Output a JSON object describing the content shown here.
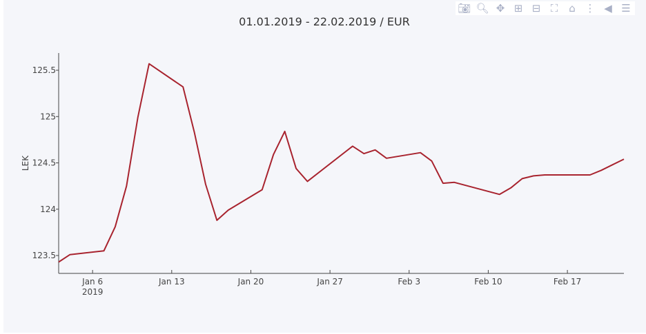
{
  "toolbar": [
    {
      "name": "camera-icon",
      "glyph": "📷︎"
    },
    {
      "name": "zoom-icon",
      "glyph": "🔍︎"
    },
    {
      "name": "pan-icon",
      "glyph": "✥"
    },
    {
      "name": "zoom-in-icon",
      "glyph": "⊞"
    },
    {
      "name": "zoom-out-icon",
      "glyph": "⊟"
    },
    {
      "name": "autoscale-icon",
      "glyph": "⛶"
    },
    {
      "name": "home-icon",
      "glyph": "⌂"
    },
    {
      "name": "spike-lines-icon",
      "glyph": "⋮"
    },
    {
      "name": "hover-closest-icon",
      "glyph": "◀"
    },
    {
      "name": "hover-compare-icon",
      "glyph": "☰"
    }
  ],
  "chart_data": {
    "type": "line",
    "title": "01.01.2019 - 22.02.2019 / EUR",
    "xlabel": "",
    "ylabel": "LEK",
    "line_color": "#a8232e",
    "x_note": "day offset from 2019-01-01",
    "x_dates": [
      "Jan 3",
      "Jan 4",
      "Jan 7",
      "Jan 8",
      "Jan 9",
      "Jan 10",
      "Jan 11",
      "Jan 14",
      "Jan 15",
      "Jan 16",
      "Jan 17",
      "Jan 18",
      "Jan 21",
      "Jan 22",
      "Jan 23",
      "Jan 24",
      "Jan 25",
      "Jan 29",
      "Jan 30",
      "Jan 31",
      "Feb 1",
      "Feb 4",
      "Feb 5",
      "Feb 6",
      "Feb 7",
      "Feb 11",
      "Feb 12",
      "Feb 13",
      "Feb 14",
      "Feb 15",
      "Feb 18",
      "Feb 19",
      "Feb 20",
      "Feb 21",
      "Feb 22"
    ],
    "x": [
      2,
      3,
      6,
      7,
      8,
      9,
      10,
      13,
      14,
      15,
      16,
      17,
      20,
      21,
      22,
      23,
      24,
      28,
      29,
      30,
      31,
      34,
      35,
      36,
      37,
      41,
      42,
      43,
      44,
      45,
      48,
      49,
      50,
      51,
      52
    ],
    "y": [
      123.43,
      123.51,
      123.55,
      123.81,
      124.25,
      124.99,
      125.57,
      125.32,
      124.83,
      124.27,
      123.88,
      123.99,
      124.21,
      124.59,
      124.84,
      124.44,
      124.3,
      124.68,
      124.6,
      124.64,
      124.55,
      124.61,
      124.52,
      124.28,
      124.29,
      124.16,
      124.23,
      124.33,
      124.36,
      124.37,
      124.37,
      124.37,
      124.42,
      124.48,
      124.54
    ],
    "xlim": [
      2,
      52
    ],
    "ylim": [
      123.307,
      125.686
    ],
    "xticks": [
      {
        "v": 5,
        "label": "Jan 6",
        "sub": "2019"
      },
      {
        "v": 12,
        "label": "Jan 13"
      },
      {
        "v": 19,
        "label": "Jan 20"
      },
      {
        "v": 26,
        "label": "Jan 27"
      },
      {
        "v": 33,
        "label": "Feb 3"
      },
      {
        "v": 40,
        "label": "Feb 10"
      },
      {
        "v": 47,
        "label": "Feb 17"
      }
    ],
    "yticks": [
      {
        "v": 123.5,
        "label": "123.5"
      },
      {
        "v": 124,
        "label": "124"
      },
      {
        "v": 124.5,
        "label": "124.5"
      },
      {
        "v": 125,
        "label": "125"
      },
      {
        "v": 125.5,
        "label": "125.5"
      }
    ],
    "grid": false,
    "legend": "none"
  }
}
